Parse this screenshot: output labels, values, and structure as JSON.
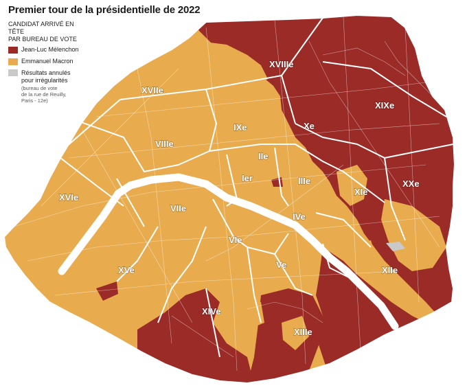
{
  "title": "Premier tour de la présidentielle de 2022",
  "legend": {
    "heading_line1": "CANDIDAT ARRIVÉ EN TÊTE",
    "heading_line2": "PAR BUREAU DE VOTE",
    "items": [
      {
        "label": "Jean-Luc Mélenchon",
        "color": "#9b2b27"
      },
      {
        "label": "Emmanuel Macron",
        "color": "#e8ac4f"
      },
      {
        "label_line1": "Résultats annulés",
        "label_line2": "pour irrégularités",
        "color": "#c9c9c9",
        "note_line1": "(bureau de vote",
        "note_line2": "de la rue de Reuilly,",
        "note_line3": "Paris - 12e)"
      }
    ]
  },
  "colors": {
    "melenchon": "#9b2b27",
    "macron": "#e8ac4f",
    "annulled": "#c9c9c9",
    "seine": "#ffffff",
    "borders": "#ffffff"
  },
  "arrondissements": {
    "I": "Ier",
    "II": "IIe",
    "III": "IIIe",
    "IV": "IVe",
    "V": "Ve",
    "VI": "VIe",
    "VII": "VIIe",
    "VIII": "VIIIe",
    "IX": "IXe",
    "X": "Xe",
    "XI": "XIe",
    "XII": "XIIe",
    "XIII": "XIIIe",
    "XIV": "XIVe",
    "XV": "XVe",
    "XVI": "XVIe",
    "XVII": "XVIIe",
    "XVIII": "XVIIIe",
    "XIX": "XIXe",
    "XX": "XXe"
  }
}
